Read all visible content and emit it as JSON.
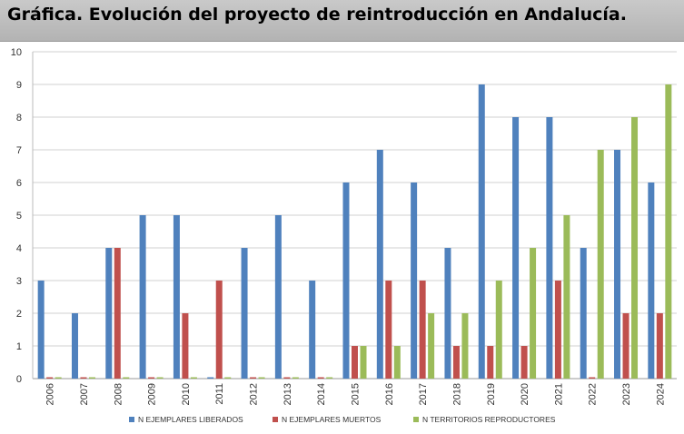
{
  "title": "Gráfica. Evolución del proyecto de reintroducción en Andalucía.",
  "chart_data": {
    "type": "bar",
    "title": "Gráfica. Evolución del proyecto de reintroducción en Andalucía.",
    "xlabel": "",
    "ylabel": "",
    "ylim": [
      0,
      10
    ],
    "yticks": [
      0,
      1,
      2,
      3,
      4,
      5,
      6,
      7,
      8,
      9,
      10
    ],
    "grid": true,
    "legend_position": "bottom",
    "categories": [
      "2006",
      "2007",
      "2008",
      "2009",
      "2010",
      "2011",
      "2012",
      "2013",
      "2014",
      "2015",
      "2016",
      "2017",
      "2018",
      "2019",
      "2020",
      "2021",
      "2022",
      "2023",
      "2024"
    ],
    "series": [
      {
        "name": "N EJEMPLARES LIBERADOS",
        "color": "#4f81bd",
        "values": [
          3,
          2,
          4,
          5,
          5,
          0,
          4,
          5,
          3,
          6,
          7,
          6,
          4,
          9,
          8,
          8,
          4,
          7,
          6
        ]
      },
      {
        "name": "N EJEMPLARES MUERTOS",
        "color": "#c0504d",
        "values": [
          0,
          0,
          4,
          0,
          2,
          3,
          0,
          0,
          0,
          1,
          3,
          3,
          1,
          1,
          1,
          3,
          0,
          2,
          2
        ]
      },
      {
        "name": "N TERRITORIOS REPRODUCTORES",
        "color": "#9bbb59",
        "values": [
          0,
          0,
          0,
          0,
          0,
          0,
          0,
          0,
          0,
          1,
          1,
          2,
          2,
          3,
          4,
          5,
          7,
          8,
          9
        ]
      }
    ]
  }
}
